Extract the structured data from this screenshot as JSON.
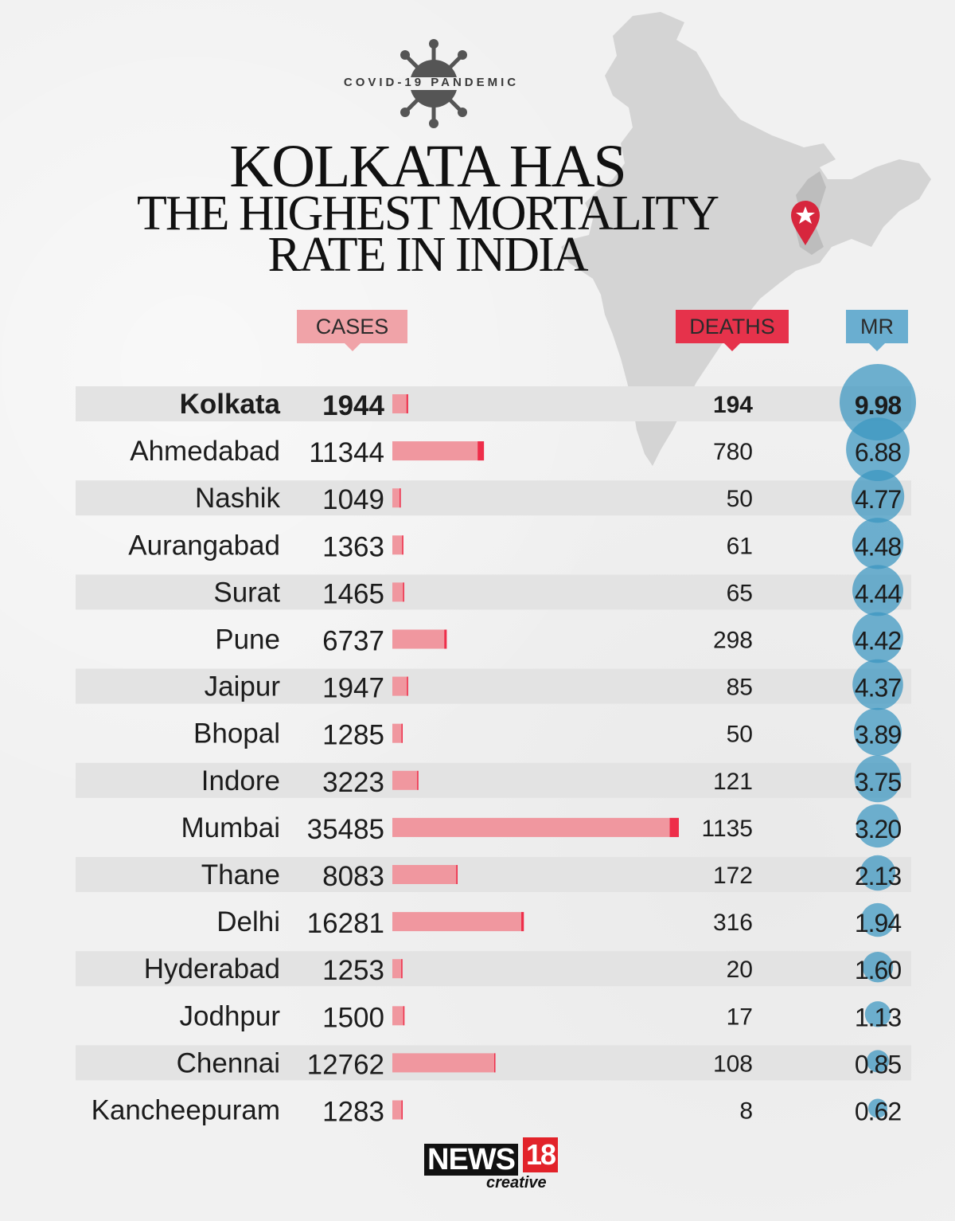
{
  "header": {
    "kicker": "COVID-19 PANDEMIC",
    "title_line1": "KOLKATA HAS",
    "title_line2": "THE HIGHEST MORTALITY",
    "title_line3": "RATE IN INDIA"
  },
  "columns": {
    "cases_label": "CASES",
    "deaths_label": "DEATHS",
    "mr_label": "MR"
  },
  "colors": {
    "cases_header": "#f0a3a8",
    "deaths_header": "#e6324b",
    "mr_header": "#6aaed0",
    "bar_cases": "#f0979f",
    "bar_deaths": "#ee2e4a",
    "bubble": "#3a96c1",
    "stripe": "#e3e3e3",
    "map": "#cfcfcf",
    "pin": "#d7263d"
  },
  "icons": {
    "virus": "virus-icon",
    "location_pin": "location-pin-icon",
    "map": "india-map-icon"
  },
  "highlight_city": "Kolkata",
  "chart_data": {
    "type": "bar",
    "title": "KOLKATA HAS THE HIGHEST MORTALITY RATE IN INDIA",
    "categories": [
      "Kolkata",
      "Ahmedabad",
      "Nashik",
      "Aurangabad",
      "Surat",
      "Pune",
      "Jaipur",
      "Bhopal",
      "Indore",
      "Mumbai",
      "Thane",
      "Delhi",
      "Hyderabad",
      "Jodhpur",
      "Chennai",
      "Kancheepuram"
    ],
    "series": [
      {
        "name": "CASES",
        "values": [
          1944,
          11344,
          1049,
          1363,
          1465,
          6737,
          1947,
          1285,
          3223,
          35485,
          8083,
          16281,
          1253,
          1500,
          12762,
          1283
        ]
      },
      {
        "name": "DEATHS",
        "values": [
          194,
          780,
          50,
          61,
          65,
          298,
          85,
          50,
          121,
          1135,
          172,
          316,
          20,
          17,
          108,
          8
        ]
      },
      {
        "name": "MR",
        "values": [
          "9.98",
          "6.88",
          "4.77",
          "4.48",
          "4.44",
          "4.42",
          "4.37",
          "3.89",
          "3.75",
          "3.20",
          "2.13",
          "1.94",
          "1.60",
          "1.13",
          "0.85",
          "0.62"
        ]
      }
    ],
    "xlabel": "",
    "ylabel": "",
    "xlim": [
      0,
      35485
    ]
  },
  "footer": {
    "logo_main": "NEWS",
    "logo_number": "18",
    "logo_sub": "creative"
  }
}
